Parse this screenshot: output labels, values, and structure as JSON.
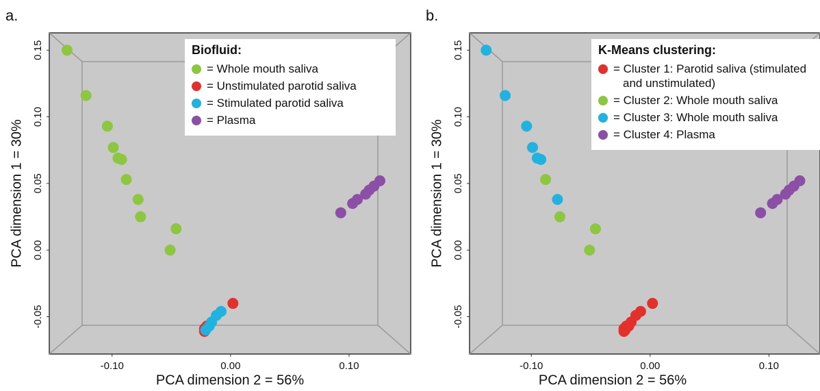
{
  "chart_data": [
    {
      "type": "scatter",
      "title": "a.",
      "xlabel": "PCA dimension 2 = 56%",
      "ylabel": "PCA dimension 1 = 30%",
      "legend_title": "Biofluid:",
      "legend": "upper right",
      "xlim": [
        -0.153,
        0.152
      ],
      "ylim": [
        -0.078,
        0.163
      ],
      "xticks": [
        {
          "value": -0.1,
          "label": "-0.10"
        },
        {
          "value": 0,
          "label": "0.00"
        },
        {
          "value": 0.1,
          "label": "0.10"
        }
      ],
      "yticks": [
        -0.05,
        {
          "value": 0,
          "label": "0.00"
        },
        0.05,
        {
          "value": 0.1,
          "label": "0.10"
        },
        0.15
      ],
      "series": [
        {
          "name": "= Whole mouth saliva",
          "color": "#8dc63f",
          "x": [
            -0.138,
            -0.122,
            -0.104,
            -0.099,
            -0.095,
            -0.092,
            -0.088,
            -0.078,
            -0.076,
            -0.046,
            -0.051
          ],
          "values": [
            0.15,
            0.116,
            0.093,
            0.077,
            0.069,
            0.068,
            0.053,
            0.038,
            0.025,
            0.016,
            0.0
          ]
        },
        {
          "name": "= Unstimulated parotid saliva",
          "color": "#e3302b",
          "x": [
            0.002,
            -0.02,
            -0.022,
            -0.022
          ],
          "values": [
            -0.04,
            -0.057,
            -0.059,
            -0.061
          ]
        },
        {
          "name": "= Stimulated parotid saliva",
          "color": "#20b3df",
          "x": [
            -0.008,
            -0.012,
            -0.016,
            -0.018,
            -0.021
          ],
          "values": [
            -0.046,
            -0.049,
            -0.054,
            -0.057,
            -0.06
          ]
        },
        {
          "name": "= Plasma",
          "color": "#8c4fa6",
          "x": [
            0.093,
            0.103,
            0.107,
            0.114,
            0.117,
            0.121,
            0.126
          ],
          "values": [
            0.028,
            0.035,
            0.038,
            0.042,
            0.045,
            0.048,
            0.052
          ]
        }
      ]
    },
    {
      "type": "scatter",
      "title": "b.",
      "xlabel": "PCA dimension 2 = 56%",
      "ylabel": "PCA dimension 1 = 30%",
      "legend_title": "K-Means clustering:",
      "legend": "upper right",
      "xlim": [
        -0.152,
        0.143
      ],
      "ylim": [
        -0.078,
        0.163
      ],
      "xticks": [
        {
          "value": -0.1,
          "label": "-0.10"
        },
        {
          "value": 0,
          "label": "0.00"
        },
        {
          "value": 0.1,
          "label": "0.10"
        }
      ],
      "yticks": [
        -0.05,
        {
          "value": 0,
          "label": "0.00"
        },
        0.05,
        {
          "value": 0.1,
          "label": "0.10"
        },
        0.15
      ],
      "series": [
        {
          "name": "= Cluster 1: Parotid saliva (stimulated and unstimulated)",
          "color": "#e3302b",
          "x": [
            0.002,
            -0.02,
            -0.022,
            -0.022,
            -0.008,
            -0.012,
            -0.016,
            -0.018,
            -0.021
          ],
          "values": [
            -0.04,
            -0.057,
            -0.059,
            -0.061,
            -0.046,
            -0.049,
            -0.054,
            -0.057,
            -0.06
          ]
        },
        {
          "name": "= Cluster 2: Whole mouth saliva",
          "color": "#8dc63f",
          "x": [
            -0.088,
            -0.076,
            -0.046,
            -0.051
          ],
          "values": [
            0.053,
            0.025,
            0.016,
            0.0
          ]
        },
        {
          "name": "= Cluster 3: Whole mouth saliva",
          "color": "#20b3df",
          "x": [
            -0.138,
            -0.122,
            -0.104,
            -0.099,
            -0.095,
            -0.092,
            -0.078
          ],
          "values": [
            0.15,
            0.116,
            0.093,
            0.077,
            0.069,
            0.068,
            0.038
          ]
        },
        {
          "name": "= Cluster 4: Plasma",
          "color": "#8c4fa6",
          "x": [
            0.093,
            0.103,
            0.107,
            0.114,
            0.117,
            0.121,
            0.126
          ],
          "values": [
            0.028,
            0.035,
            0.038,
            0.042,
            0.045,
            0.048,
            0.052
          ]
        }
      ]
    }
  ]
}
